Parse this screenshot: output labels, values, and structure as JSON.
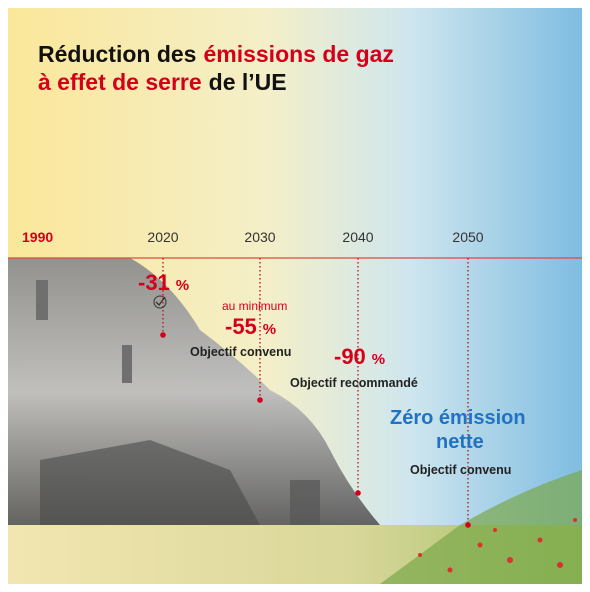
{
  "header": {
    "title": [
      [
        {
          "text": "Réduction des",
          "accent": false
        },
        {
          "text": "émissions de gaz",
          "accent": true
        }
      ],
      [
        {
          "text": "à effet de serre",
          "accent": true
        },
        {
          "text": "de l’UE",
          "accent": false
        }
      ]
    ]
  },
  "timeline": {
    "start": "1990",
    "milestones": [
      {
        "year": "2020",
        "value": "-31",
        "unit": "%"
      },
      {
        "year": "2030",
        "prefix": "au minimum",
        "value": "-55",
        "unit": "%",
        "note": "Objectif convenu"
      },
      {
        "year": "2040",
        "value": "-90",
        "unit": "%",
        "note": "Objectif recommandé"
      },
      {
        "year": "2050",
        "headline": [
          "Zéro émission",
          "nette"
        ],
        "note": "Objectif convenu"
      }
    ]
  }
}
